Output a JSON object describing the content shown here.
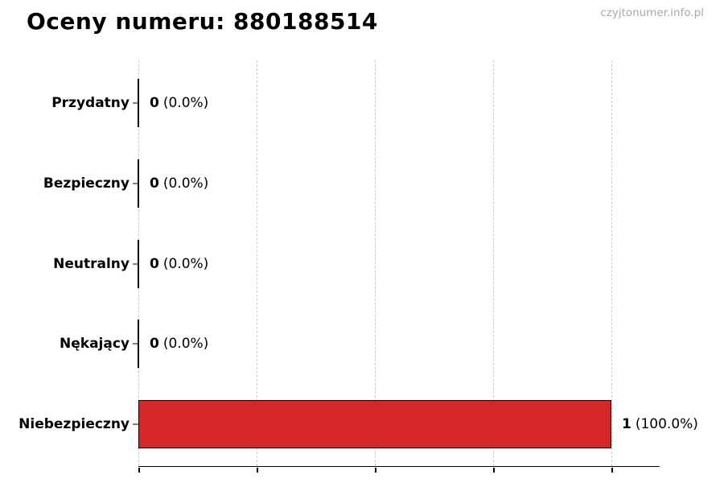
{
  "header": {
    "title": "Oceny numeru: 880188514",
    "watermark": "czyjtonumer.info.pl"
  },
  "chart_data": {
    "type": "bar",
    "orientation": "horizontal",
    "title": "Oceny numeru: 880188514",
    "categories": [
      "Przydatny",
      "Bezpieczny",
      "Neutralny",
      "Nękający",
      "Niebezpieczny"
    ],
    "values": [
      0,
      0,
      0,
      0,
      1
    ],
    "value_counts": [
      "0",
      "0",
      "0",
      "0",
      "1"
    ],
    "value_percents": [
      "(0.0%)",
      "(0.0%)",
      "(0.0%)",
      "(0.0%)",
      "(100.0%)"
    ],
    "x_ticks": [
      0,
      0.25,
      0.5,
      0.75,
      1.0
    ],
    "xlim": [
      0,
      1.1
    ],
    "grid": "vertical-dashed",
    "legend": "none",
    "colors": {
      "bar_fill": "#d62728",
      "bar_edge": "#000000",
      "zero_bar": "#000000",
      "grid": "#cbcbcb",
      "axis": "#000000",
      "watermark_text": "#a8a8a8"
    }
  }
}
